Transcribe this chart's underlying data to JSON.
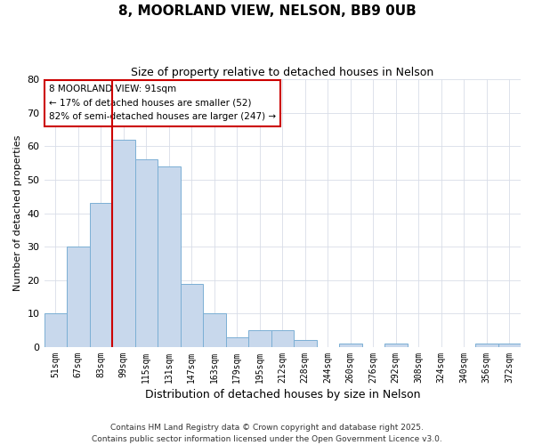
{
  "title": "8, MOORLAND VIEW, NELSON, BB9 0UB",
  "subtitle": "Size of property relative to detached houses in Nelson",
  "xlabel": "Distribution of detached houses by size in Nelson",
  "ylabel": "Number of detached properties",
  "footer_lines": [
    "Contains HM Land Registry data © Crown copyright and database right 2025.",
    "Contains public sector information licensed under the Open Government Licence v3.0."
  ],
  "categories": [
    "51sqm",
    "67sqm",
    "83sqm",
    "99sqm",
    "115sqm",
    "131sqm",
    "147sqm",
    "163sqm",
    "179sqm",
    "195sqm",
    "212sqm",
    "228sqm",
    "244sqm",
    "260sqm",
    "276sqm",
    "292sqm",
    "308sqm",
    "324sqm",
    "340sqm",
    "356sqm",
    "372sqm"
  ],
  "values": [
    10,
    30,
    43,
    62,
    56,
    54,
    19,
    10,
    3,
    5,
    5,
    2,
    0,
    1,
    0,
    1,
    0,
    0,
    0,
    1,
    1
  ],
  "bar_color": "#c8d8ec",
  "bar_edge_color": "#7bafd4",
  "ylim": [
    0,
    80
  ],
  "yticks": [
    0,
    10,
    20,
    30,
    40,
    50,
    60,
    70,
    80
  ],
  "annotation_box_text": "8 MOORLAND VIEW: 91sqm\n← 17% of detached houses are smaller (52)\n82% of semi-detached houses are larger (247) →",
  "vline_x_index": 2.5,
  "vline_color": "#cc0000",
  "background_color": "#ffffff",
  "plot_background": "#ffffff",
  "grid_color": "#d8dde8"
}
